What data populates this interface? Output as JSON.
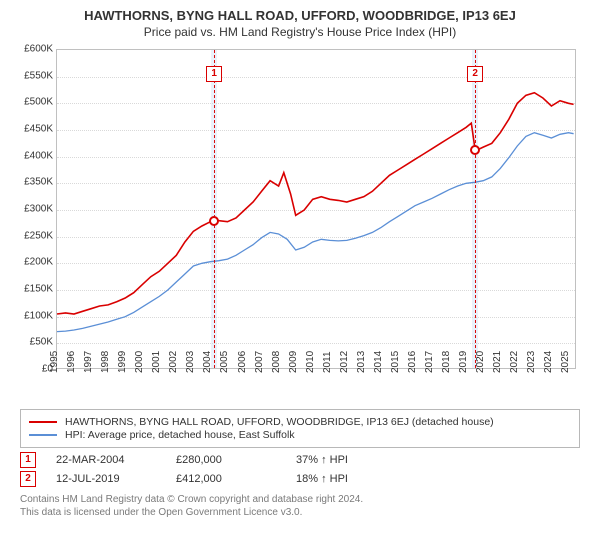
{
  "title": "HAWTHORNS, BYNG HALL ROAD, UFFORD, WOODBRIDGE, IP13 6EJ",
  "subtitle": "Price paid vs. HM Land Registry's House Price Index (HPI)",
  "chart": {
    "type": "line",
    "xlim": [
      1995,
      2025.5
    ],
    "ylim": [
      0,
      600000
    ],
    "ytick_step": 50000,
    "ytick_prefix": "£",
    "ytick_suffix": "K",
    "xticks": [
      1995,
      1996,
      1997,
      1998,
      1999,
      2000,
      2001,
      2002,
      2003,
      2004,
      2005,
      2006,
      2007,
      2008,
      2009,
      2010,
      2011,
      2012,
      2013,
      2014,
      2015,
      2016,
      2017,
      2018,
      2019,
      2020,
      2021,
      2022,
      2023,
      2024,
      2025
    ],
    "background_color": "#ffffff",
    "grid_color": "#d9d9d9",
    "axis_color": "#c0c0c0",
    "label_fontsize": 10,
    "title_fontsize": 13,
    "series": [
      {
        "name": "HAWTHORNS, BYNG HALL ROAD, UFFORD, WOODBRIDGE, IP13 6EJ (detached house)",
        "color": "#d90000",
        "line_width": 1.6,
        "data": [
          [
            1995.0,
            105000
          ],
          [
            1995.5,
            107000
          ],
          [
            1996.0,
            105000
          ],
          [
            1996.5,
            110000
          ],
          [
            1997.0,
            115000
          ],
          [
            1997.5,
            120000
          ],
          [
            1998.0,
            122000
          ],
          [
            1998.5,
            128000
          ],
          [
            1999.0,
            135000
          ],
          [
            1999.5,
            145000
          ],
          [
            2000.0,
            160000
          ],
          [
            2000.5,
            175000
          ],
          [
            2001.0,
            185000
          ],
          [
            2001.5,
            200000
          ],
          [
            2002.0,
            215000
          ],
          [
            2002.5,
            240000
          ],
          [
            2003.0,
            260000
          ],
          [
            2003.5,
            270000
          ],
          [
            2004.0,
            278000
          ],
          [
            2004.22,
            280000
          ],
          [
            2004.5,
            280000
          ],
          [
            2005.0,
            278000
          ],
          [
            2005.5,
            285000
          ],
          [
            2006.0,
            300000
          ],
          [
            2006.5,
            315000
          ],
          [
            2007.0,
            335000
          ],
          [
            2007.5,
            355000
          ],
          [
            2008.0,
            345000
          ],
          [
            2008.3,
            370000
          ],
          [
            2008.7,
            330000
          ],
          [
            2009.0,
            290000
          ],
          [
            2009.5,
            300000
          ],
          [
            2010.0,
            320000
          ],
          [
            2010.5,
            325000
          ],
          [
            2011.0,
            320000
          ],
          [
            2011.5,
            318000
          ],
          [
            2012.0,
            315000
          ],
          [
            2012.5,
            320000
          ],
          [
            2013.0,
            325000
          ],
          [
            2013.5,
            335000
          ],
          [
            2014.0,
            350000
          ],
          [
            2014.5,
            365000
          ],
          [
            2015.0,
            375000
          ],
          [
            2015.5,
            385000
          ],
          [
            2016.0,
            395000
          ],
          [
            2016.5,
            405000
          ],
          [
            2017.0,
            415000
          ],
          [
            2017.5,
            425000
          ],
          [
            2018.0,
            435000
          ],
          [
            2018.5,
            445000
          ],
          [
            2019.0,
            455000
          ],
          [
            2019.3,
            463000
          ],
          [
            2019.53,
            412000
          ],
          [
            2019.8,
            415000
          ],
          [
            2020.0,
            418000
          ],
          [
            2020.5,
            425000
          ],
          [
            2021.0,
            445000
          ],
          [
            2021.5,
            470000
          ],
          [
            2022.0,
            500000
          ],
          [
            2022.5,
            515000
          ],
          [
            2023.0,
            520000
          ],
          [
            2023.5,
            510000
          ],
          [
            2024.0,
            495000
          ],
          [
            2024.5,
            505000
          ],
          [
            2025.0,
            500000
          ],
          [
            2025.3,
            498000
          ]
        ]
      },
      {
        "name": "HPI: Average price, detached house, East Suffolk",
        "color": "#5b8fd6",
        "line_width": 1.3,
        "data": [
          [
            1995.0,
            72000
          ],
          [
            1995.5,
            73000
          ],
          [
            1996.0,
            75000
          ],
          [
            1996.5,
            78000
          ],
          [
            1997.0,
            82000
          ],
          [
            1997.5,
            86000
          ],
          [
            1998.0,
            90000
          ],
          [
            1998.5,
            95000
          ],
          [
            1999.0,
            100000
          ],
          [
            1999.5,
            108000
          ],
          [
            2000.0,
            118000
          ],
          [
            2000.5,
            128000
          ],
          [
            2001.0,
            138000
          ],
          [
            2001.5,
            150000
          ],
          [
            2002.0,
            165000
          ],
          [
            2002.5,
            180000
          ],
          [
            2003.0,
            195000
          ],
          [
            2003.5,
            200000
          ],
          [
            2004.0,
            203000
          ],
          [
            2004.5,
            205000
          ],
          [
            2005.0,
            208000
          ],
          [
            2005.5,
            215000
          ],
          [
            2006.0,
            225000
          ],
          [
            2006.5,
            235000
          ],
          [
            2007.0,
            248000
          ],
          [
            2007.5,
            258000
          ],
          [
            2008.0,
            255000
          ],
          [
            2008.5,
            245000
          ],
          [
            2009.0,
            225000
          ],
          [
            2009.5,
            230000
          ],
          [
            2010.0,
            240000
          ],
          [
            2010.5,
            245000
          ],
          [
            2011.0,
            243000
          ],
          [
            2011.5,
            242000
          ],
          [
            2012.0,
            243000
          ],
          [
            2012.5,
            247000
          ],
          [
            2013.0,
            252000
          ],
          [
            2013.5,
            258000
          ],
          [
            2014.0,
            267000
          ],
          [
            2014.5,
            278000
          ],
          [
            2015.0,
            288000
          ],
          [
            2015.5,
            298000
          ],
          [
            2016.0,
            308000
          ],
          [
            2016.5,
            315000
          ],
          [
            2017.0,
            322000
          ],
          [
            2017.5,
            330000
          ],
          [
            2018.0,
            338000
          ],
          [
            2018.5,
            345000
          ],
          [
            2019.0,
            350000
          ],
          [
            2019.5,
            352000
          ],
          [
            2020.0,
            355000
          ],
          [
            2020.5,
            362000
          ],
          [
            2021.0,
            378000
          ],
          [
            2021.5,
            398000
          ],
          [
            2022.0,
            420000
          ],
          [
            2022.5,
            438000
          ],
          [
            2023.0,
            445000
          ],
          [
            2023.5,
            440000
          ],
          [
            2024.0,
            435000
          ],
          [
            2024.5,
            442000
          ],
          [
            2025.0,
            445000
          ],
          [
            2025.3,
            443000
          ]
        ]
      }
    ],
    "event_bands": [
      {
        "x": 2004.22,
        "color": "#d90000",
        "band_color": "#eaf1fb",
        "band_width_years": 0.35
      },
      {
        "x": 2019.53,
        "color": "#d90000",
        "band_color": "#eaf1fb",
        "band_width_years": 0.35
      }
    ],
    "event_markers": [
      {
        "num": "1",
        "x": 2004.22,
        "y": 280000,
        "box_y": 570000
      },
      {
        "num": "2",
        "x": 2019.53,
        "y": 412000,
        "box_y": 570000
      }
    ]
  },
  "legend": {
    "items": [
      {
        "color": "#d90000",
        "label": "HAWTHORNS, BYNG HALL ROAD, UFFORD, WOODBRIDGE, IP13 6EJ (detached house)"
      },
      {
        "color": "#5b8fd6",
        "label": "HPI: Average price, detached house, East Suffolk"
      }
    ]
  },
  "events": [
    {
      "num": "1",
      "color": "#d90000",
      "date": "22-MAR-2004",
      "price": "£280,000",
      "delta": "37% ↑ HPI"
    },
    {
      "num": "2",
      "color": "#d90000",
      "date": "12-JUL-2019",
      "price": "£412,000",
      "delta": "18% ↑ HPI"
    }
  ],
  "footnote_line1": "Contains HM Land Registry data © Crown copyright and database right 2024.",
  "footnote_line2": "This data is licensed under the Open Government Licence v3.0."
}
